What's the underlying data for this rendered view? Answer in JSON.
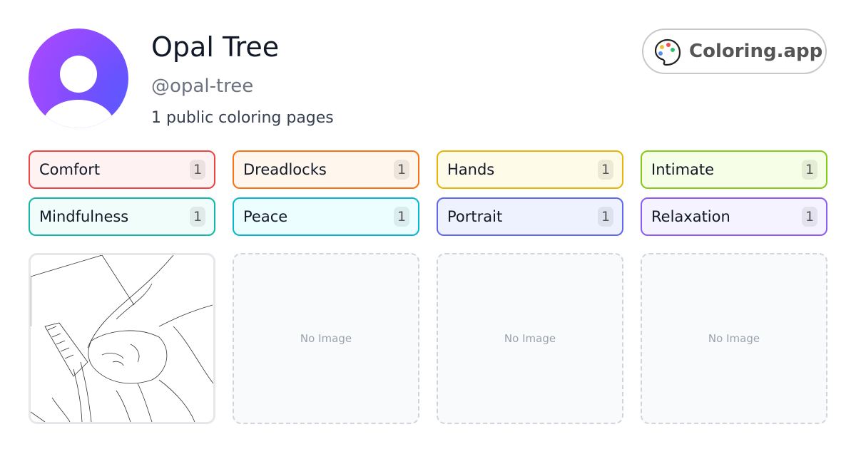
{
  "profile": {
    "name": "Opal Tree",
    "handle": "@opal-tree",
    "page_count": "1 public coloring pages"
  },
  "brand": {
    "label": "Coloring.app",
    "icon": "palette-icon"
  },
  "tags": [
    {
      "label": "Comfort",
      "count": "1",
      "color": "#ef4444",
      "bg": "#fef2f2"
    },
    {
      "label": "Dreadlocks",
      "count": "1",
      "color": "#f97316",
      "bg": "#fff7ed"
    },
    {
      "label": "Hands",
      "count": "1",
      "color": "#eab308",
      "bg": "#fefce8"
    },
    {
      "label": "Intimate",
      "count": "1",
      "color": "#84cc16",
      "bg": "#f7fee7"
    },
    {
      "label": "Mindfulness",
      "count": "1",
      "color": "#14b8a6",
      "bg": "#f0fdfa"
    },
    {
      "label": "Peace",
      "count": "1",
      "color": "#06b6d4",
      "bg": "#ecfeff"
    },
    {
      "label": "Portrait",
      "count": "1",
      "color": "#6366f1",
      "bg": "#eef2ff"
    },
    {
      "label": "Relaxation",
      "count": "1",
      "color": "#8b5cf6",
      "bg": "#f5f3ff"
    }
  ],
  "cards": [
    {
      "type": "image"
    },
    {
      "placeholder": "No Image"
    },
    {
      "placeholder": "No Image"
    },
    {
      "placeholder": "No Image"
    }
  ]
}
